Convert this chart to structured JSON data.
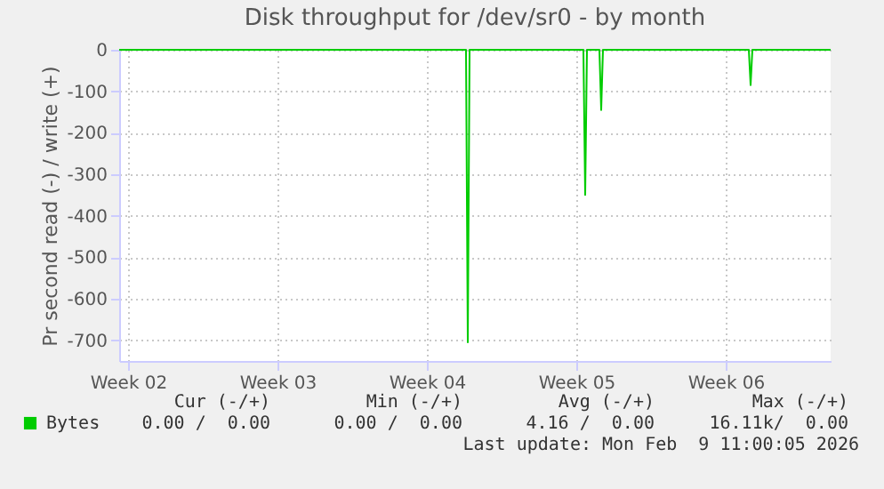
{
  "chart_data": {
    "type": "line",
    "title": "Disk throughput for /dev/sr0 - by month",
    "ylabel": "Pr second read (-) / write (+)",
    "xlim": [
      "2026-01-07T03:00",
      "2026-02-09T11:00"
    ],
    "xticks": [
      {
        "value": "2026-01-07T13:00",
        "label": "Week 02"
      },
      {
        "value": "2026-01-14T13:00",
        "label": "Week 03"
      },
      {
        "value": "2026-01-21T13:00",
        "label": "Week 04"
      },
      {
        "value": "2026-01-28T13:00",
        "label": "Week 05"
      },
      {
        "value": "2026-02-04T13:00",
        "label": "Week 06"
      }
    ],
    "ylim": [
      -750,
      0
    ],
    "yticks": [
      0,
      -100,
      -200,
      -300,
      -400,
      -500,
      -600,
      -700
    ],
    "x": [
      "2026-01-07T03:00",
      "2026-01-23T09:00",
      "2026-01-23T11:00",
      "2026-01-23T13:00",
      "2026-01-28T21:00",
      "2026-01-28T23:00",
      "2026-01-29T01:00",
      "2026-01-29T15:00",
      "2026-01-29T17:00",
      "2026-01-29T19:00",
      "2026-02-05T15:00",
      "2026-02-05T17:00",
      "2026-02-05T19:00",
      "2026-02-09T11:00"
    ],
    "series": [
      {
        "name": "Bytes",
        "color": "#00cc00",
        "values": [
          0,
          0,
          -705,
          0,
          0,
          -350,
          0,
          0,
          -145,
          0,
          0,
          -85,
          0,
          0
        ]
      }
    ],
    "grid": true,
    "legend": "bottom left",
    "annotations": [
      "Cur (-/+)",
      "Min (-/+)",
      "Avg (-/+)",
      "Max (-/+)",
      "0.00 /  0.00",
      "0.00 /  0.00",
      "4.16 /  0.00",
      "16.11k/  0.00",
      "Last update: Mon Feb  9 11:00:05 2026"
    ]
  }
}
